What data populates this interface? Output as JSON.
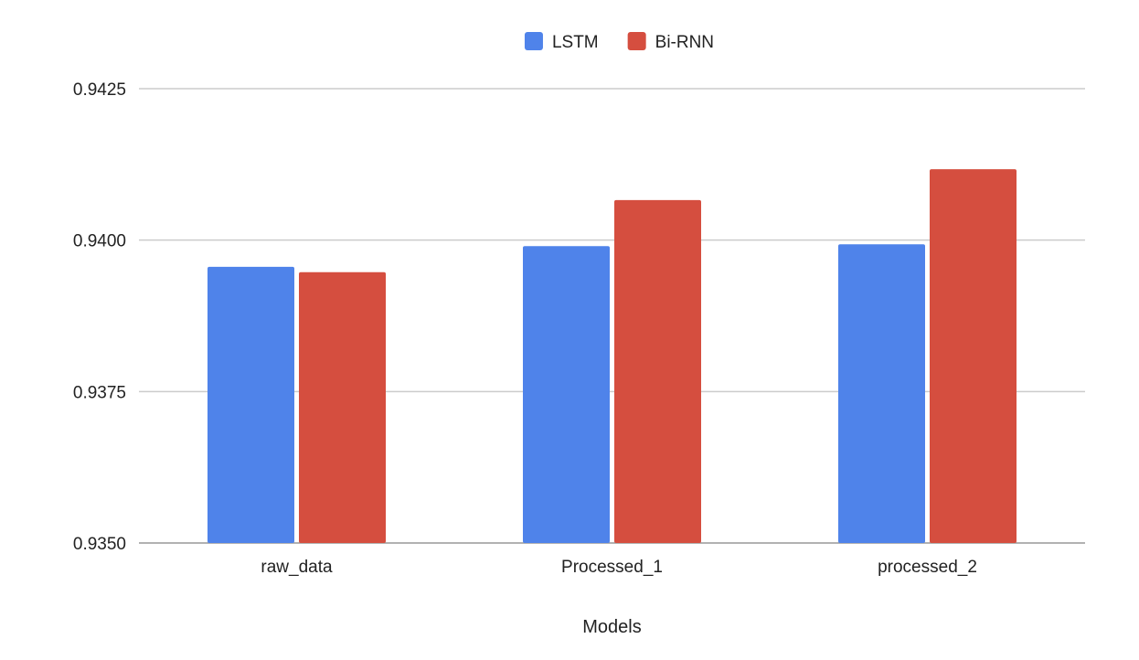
{
  "chart_data": {
    "type": "bar",
    "title": "",
    "xlabel": "Models",
    "ylabel": "",
    "categories": [
      "raw_data",
      "Processed_1",
      "processed_2"
    ],
    "series": [
      {
        "name": "LSTM",
        "color": "#4f83ea",
        "values": [
          0.93956,
          0.9399,
          0.93993
        ]
      },
      {
        "name": "Bi-RNN",
        "color": "#d54e3f",
        "values": [
          0.93947,
          0.94066,
          0.94117
        ]
      }
    ],
    "ylim": [
      0.935,
      0.9425
    ],
    "yticks": [
      "0.9350",
      "0.9375",
      "0.9400",
      "0.9425"
    ],
    "grid": true,
    "legend_position": "top-center"
  }
}
